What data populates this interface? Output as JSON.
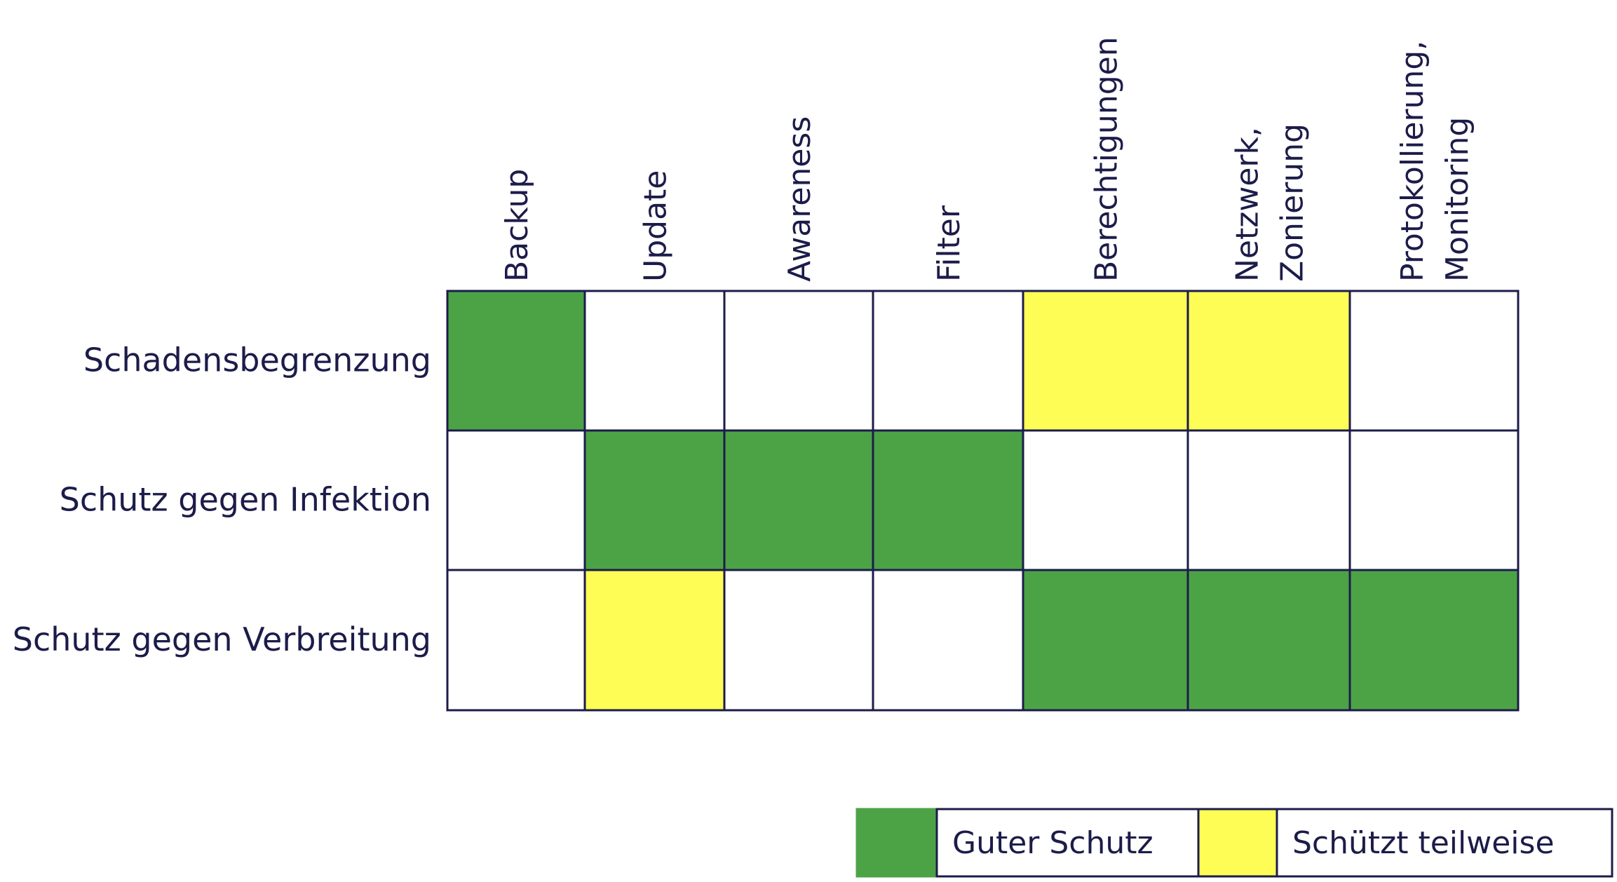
{
  "chart_data": {
    "type": "heatmap",
    "title": "",
    "columns": [
      [
        "Backup"
      ],
      [
        "Update"
      ],
      [
        "Awareness"
      ],
      [
        "Filter"
      ],
      [
        "Berechtigungen"
      ],
      [
        "Netzwerk,",
        "Zonierung"
      ],
      [
        "Protokollierung,",
        "Monitoring"
      ]
    ],
    "rows": [
      "Schadensbegrenzung",
      "Schutz gegen Infektion",
      "Schutz gegen Verbreitung"
    ],
    "values": [
      [
        "good",
        "none",
        "none",
        "none",
        "partial",
        "partial",
        "none"
      ],
      [
        "none",
        "good",
        "good",
        "good",
        "none",
        "none",
        "none"
      ],
      [
        "none",
        "partial",
        "none",
        "none",
        "good",
        "good",
        "good"
      ]
    ],
    "legend": [
      {
        "key": "good",
        "label": "Guter Schutz",
        "color": "#4ca346"
      },
      {
        "key": "partial",
        "label": "Schützt teilweise",
        "color": "#fdfd55"
      }
    ],
    "colors": {
      "none": "#ffffff",
      "border": "#1c1c4a",
      "text": "#1c1c4a"
    }
  }
}
